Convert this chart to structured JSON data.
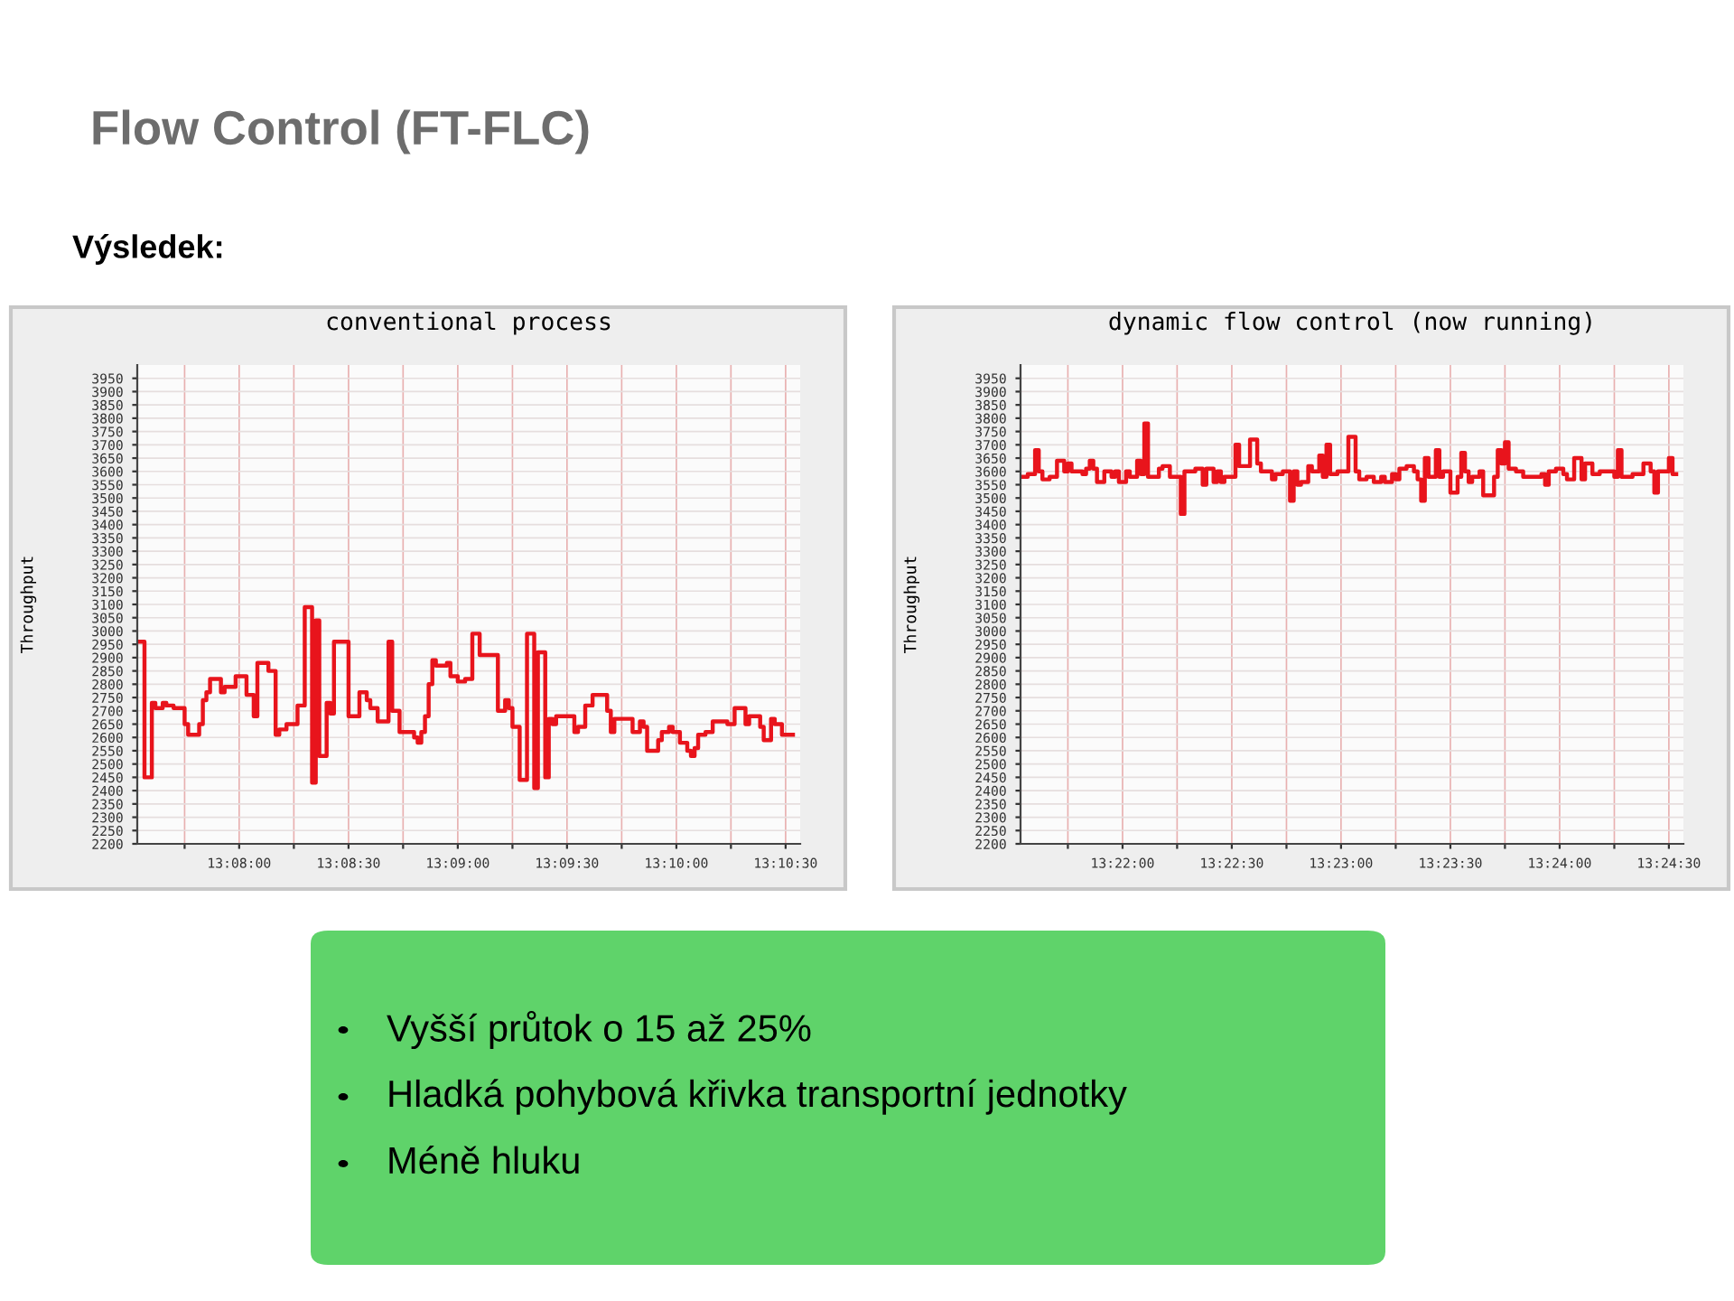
{
  "chart_data": [
    {
      "type": "other",
      "title": "Flow Control (FT-FLC)",
      "subtitle": "Výsledek:"
    },
    {
      "type": "step",
      "title": "conventional process",
      "ylabel": "Throughput",
      "color": "#e8141c",
      "grid": true,
      "x": [
        13.12556,
        13.12611,
        13.12667,
        13.12694,
        13.1275,
        13.12778,
        13.12833,
        13.12917,
        13.12944,
        13.13028,
        13.13056,
        13.13083,
        13.13111,
        13.13194,
        13.13222,
        13.13306,
        13.13389,
        13.13444,
        13.13472,
        13.13556,
        13.13611,
        13.13639,
        13.13694,
        13.13778,
        13.13833,
        13.13889,
        13.13917,
        13.13944,
        13.14,
        13.14028,
        13.14056,
        13.14167,
        13.1425,
        13.14306,
        13.14333,
        13.14389,
        13.14472,
        13.145,
        13.14556,
        13.14667,
        13.14694,
        13.14722,
        13.1475,
        13.14778,
        13.14806,
        13.14833,
        13.14917,
        13.14944,
        13.15,
        13.15056,
        13.15111,
        13.15167,
        13.15306,
        13.15361,
        13.15389,
        13.15417,
        13.15472,
        13.15528,
        13.15583,
        13.15611,
        13.15667,
        13.15694,
        13.15722,
        13.1575,
        13.15889,
        13.15917,
        13.15972,
        13.16028,
        13.16139,
        13.16167,
        13.16194,
        13.16333,
        13.16389,
        13.16417,
        13.16444,
        13.16528,
        13.16556,
        13.16611,
        13.16639,
        13.16694,
        13.1675,
        13.16778,
        13.16806,
        13.16833,
        13.16889,
        13.16944,
        13.17056,
        13.17111,
        13.17194,
        13.17222,
        13.17306,
        13.17333,
        13.17389,
        13.17417,
        13.17472,
        13.17556
      ],
      "values": [
        2960,
        2450,
        2730,
        2710,
        2730,
        2720,
        2710,
        2650,
        2610,
        2650,
        2740,
        2770,
        2820,
        2770,
        2790,
        2830,
        2760,
        2680,
        2880,
        2850,
        2610,
        2630,
        2650,
        2720,
        3090,
        2430,
        3040,
        2530,
        2730,
        2690,
        2960,
        2680,
        2770,
        2740,
        2710,
        2660,
        2960,
        2700,
        2620,
        2600,
        2580,
        2620,
        2680,
        2800,
        2890,
        2870,
        2880,
        2830,
        2810,
        2820,
        2990,
        2910,
        2700,
        2740,
        2710,
        2640,
        2440,
        2990,
        2410,
        2920,
        2450,
        2670,
        2650,
        2680,
        2620,
        2640,
        2720,
        2760,
        2700,
        2620,
        2670,
        2620,
        2660,
        2640,
        2550,
        2590,
        2620,
        2640,
        2620,
        2580,
        2550,
        2530,
        2560,
        2610,
        2620,
        2660,
        2650,
        2710,
        2650,
        2680,
        2640,
        2590,
        2670,
        2650,
        2610,
        2610
      ],
      "xlim": [
        13.12556,
        13.17611
      ],
      "ylim": [
        2200,
        4000
      ],
      "xticks": [
        {
          "value": 13.12917,
          "label": null
        },
        {
          "value": 13.13333,
          "label": "13:08:00"
        },
        {
          "value": 13.1375,
          "label": null
        },
        {
          "value": 13.14167,
          "label": "13:08:30"
        },
        {
          "value": 13.14583,
          "label": null
        },
        {
          "value": 13.15,
          "label": "13:09:00"
        },
        {
          "value": 13.15417,
          "label": null
        },
        {
          "value": 13.15833,
          "label": "13:09:30"
        },
        {
          "value": 13.1625,
          "label": null
        },
        {
          "value": 13.16667,
          "label": "13:10:00"
        },
        {
          "value": 13.17083,
          "label": null
        },
        {
          "value": 13.175,
          "label": "13:10:30"
        }
      ],
      "yticks": [
        2200,
        2250,
        2300,
        2350,
        2400,
        2450,
        2500,
        2550,
        2600,
        2650,
        2700,
        2750,
        2800,
        2850,
        2900,
        2950,
        3000,
        3050,
        3100,
        3150,
        3200,
        3250,
        3300,
        3350,
        3400,
        3450,
        3500,
        3550,
        3600,
        3650,
        3700,
        3750,
        3800,
        3850,
        3900,
        3950
      ]
    },
    {
      "type": "step",
      "title": "dynamic flow control (now running)",
      "ylabel": "Throughput",
      "color": "#e8141c",
      "grid": true,
      "x": [
        13.35889,
        13.35944,
        13.36,
        13.36028,
        13.36056,
        13.36111,
        13.36167,
        13.36222,
        13.3625,
        13.36278,
        13.36361,
        13.36389,
        13.36417,
        13.36444,
        13.36472,
        13.36528,
        13.36583,
        13.36611,
        13.36639,
        13.36694,
        13.36722,
        13.36778,
        13.36806,
        13.36833,
        13.36861,
        13.36944,
        13.36972,
        13.37028,
        13.37111,
        13.37139,
        13.37222,
        13.37278,
        13.37306,
        13.37361,
        13.37389,
        13.37417,
        13.37444,
        13.37528,
        13.37556,
        13.37639,
        13.37694,
        13.37722,
        13.37806,
        13.37833,
        13.37889,
        13.37944,
        13.37972,
        13.38,
        13.38028,
        13.38083,
        13.38111,
        13.38167,
        13.38194,
        13.38222,
        13.3825,
        13.38306,
        13.38389,
        13.38444,
        13.38472,
        13.38528,
        13.38583,
        13.38639,
        13.38667,
        13.38722,
        13.3875,
        13.38778,
        13.38833,
        13.38889,
        13.38917,
        13.38944,
        13.38972,
        13.39,
        13.39056,
        13.39083,
        13.39111,
        13.39167,
        13.39222,
        13.3925,
        13.39278,
        13.39306,
        13.39333,
        13.39389,
        13.39417,
        13.395,
        13.39528,
        13.39556,
        13.39583,
        13.39611,
        13.39667,
        13.39722,
        13.39861,
        13.39889,
        13.39917,
        13.39972,
        13.40028,
        13.40056,
        13.40111,
        13.40167,
        13.40194,
        13.4025,
        13.40306,
        13.40417,
        13.40444,
        13.40472,
        13.40556,
        13.40639,
        13.40694,
        13.40722,
        13.4075,
        13.40833,
        13.40861,
        13.40889
      ],
      "values": [
        3580,
        3590,
        3680,
        3600,
        3570,
        3580,
        3640,
        3600,
        3630,
        3600,
        3590,
        3610,
        3640,
        3610,
        3560,
        3600,
        3580,
        3600,
        3560,
        3600,
        3580,
        3640,
        3590,
        3780,
        3580,
        3610,
        3620,
        3580,
        3440,
        3600,
        3610,
        3550,
        3610,
        3560,
        3600,
        3560,
        3580,
        3700,
        3620,
        3720,
        3630,
        3600,
        3570,
        3590,
        3600,
        3490,
        3600,
        3550,
        3560,
        3620,
        3600,
        3660,
        3580,
        3700,
        3590,
        3600,
        3730,
        3600,
        3570,
        3580,
        3560,
        3580,
        3560,
        3590,
        3570,
        3610,
        3620,
        3600,
        3570,
        3490,
        3650,
        3580,
        3680,
        3580,
        3600,
        3520,
        3580,
        3670,
        3600,
        3560,
        3580,
        3600,
        3510,
        3580,
        3680,
        3630,
        3710,
        3610,
        3600,
        3580,
        3590,
        3550,
        3600,
        3610,
        3590,
        3570,
        3650,
        3570,
        3630,
        3590,
        3600,
        3580,
        3680,
        3580,
        3590,
        3630,
        3600,
        3520,
        3600,
        3650,
        3590,
        3590
      ],
      "xlim": [
        13.35889,
        13.40944
      ],
      "ylim": [
        2200,
        4000
      ],
      "xticks": [
        {
          "value": 13.3625,
          "label": null
        },
        {
          "value": 13.36667,
          "label": "13:22:00"
        },
        {
          "value": 13.37083,
          "label": null
        },
        {
          "value": 13.375,
          "label": "13:22:30"
        },
        {
          "value": 13.37917,
          "label": null
        },
        {
          "value": 13.38333,
          "label": "13:23:00"
        },
        {
          "value": 13.3875,
          "label": null
        },
        {
          "value": 13.39167,
          "label": "13:23:30"
        },
        {
          "value": 13.39583,
          "label": null
        },
        {
          "value": 13.4,
          "label": "13:24:00"
        },
        {
          "value": 13.40417,
          "label": null
        },
        {
          "value": 13.40833,
          "label": "13:24:30"
        }
      ],
      "yticks": [
        2200,
        2250,
        2300,
        2350,
        2400,
        2450,
        2500,
        2550,
        2600,
        2650,
        2700,
        2750,
        2800,
        2850,
        2900,
        2950,
        3000,
        3050,
        3100,
        3150,
        3200,
        3250,
        3300,
        3350,
        3400,
        3450,
        3500,
        3550,
        3600,
        3650,
        3700,
        3750,
        3800,
        3850,
        3900,
        3950
      ]
    },
    {
      "type": "other",
      "annotations": [
        "Vyšší průtok o 15 až 25%",
        "Hladká pohybová křivka transportní jednotky",
        "Méně hluku"
      ]
    }
  ]
}
